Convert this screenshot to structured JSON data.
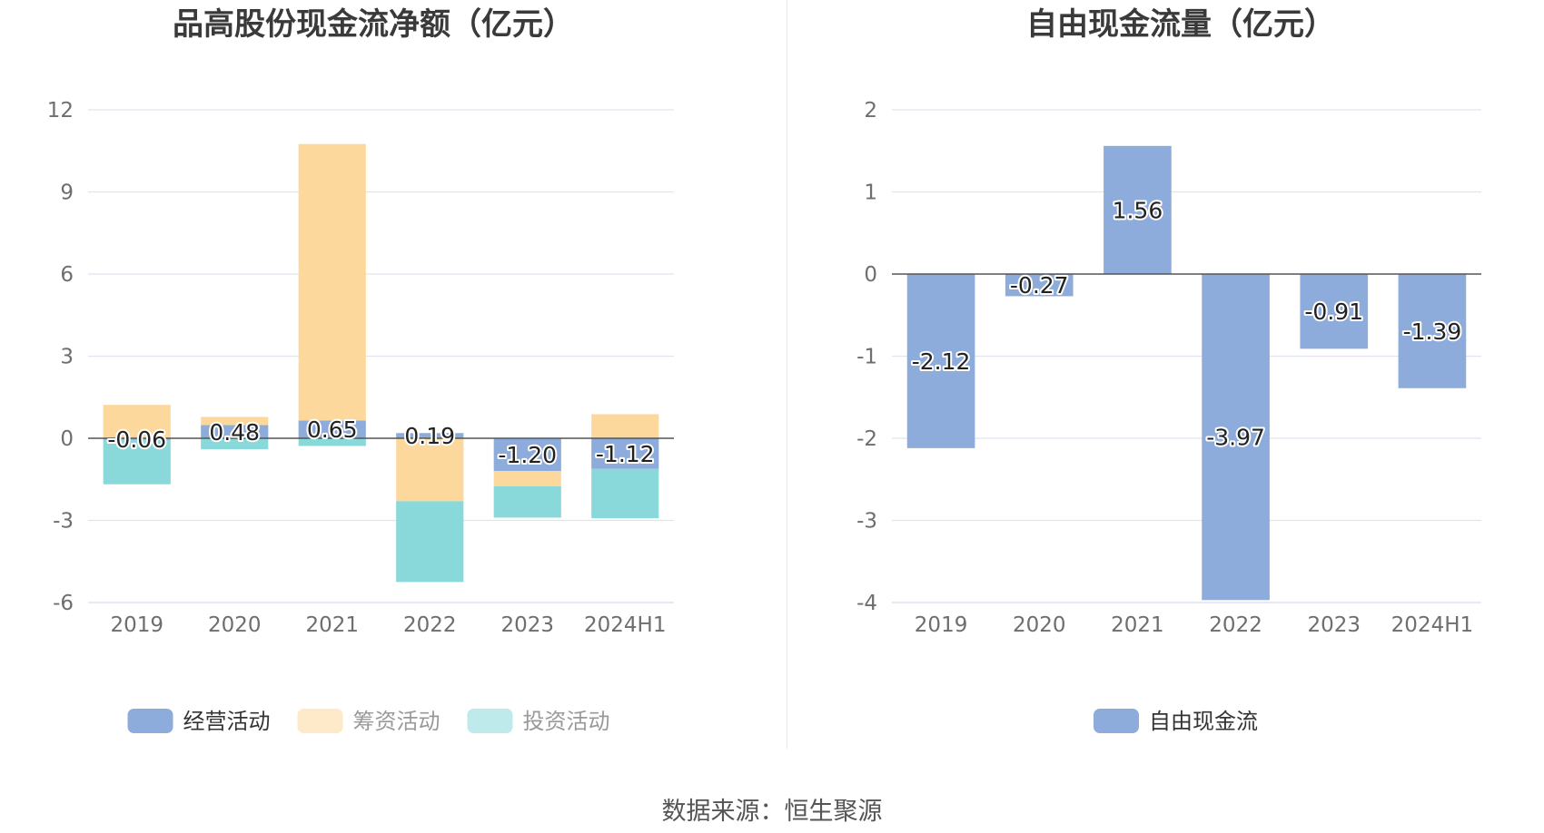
{
  "source": "数据来源：恒生聚源",
  "colors": {
    "operating": "#8eacdb",
    "financing": "#fdd89c",
    "investing": "#89d8da",
    "free_cash_flow": "#8eacdb",
    "grid": "#e1e4f0",
    "axis_text": "#6e6e6e",
    "title": "#3a3a3a",
    "zero_line": "#555555",
    "legend_text": "#333333"
  },
  "chart_data": [
    {
      "type": "bar",
      "stacked": true,
      "title": "品高股份现金流净额（亿元）",
      "categories": [
        "2019",
        "2020",
        "2021",
        "2022",
        "2023",
        "2024H1"
      ],
      "ylim": [
        -6,
        12
      ],
      "yticks": [
        "12",
        "9",
        "6",
        "3",
        "0",
        "-3",
        "-6"
      ],
      "grid": true,
      "legend_position": "bottom",
      "series": [
        {
          "name": "经营活动",
          "key": "operating",
          "values": [
            -0.06,
            0.48,
            0.65,
            0.19,
            -1.2,
            -1.12
          ]
        },
        {
          "name": "筹资活动",
          "key": "financing",
          "values": [
            1.22,
            0.3,
            10.1,
            -2.3,
            -0.55,
            0.88
          ]
        },
        {
          "name": "投资活动",
          "key": "investing",
          "values": [
            -1.62,
            -0.4,
            -0.28,
            -2.95,
            -1.15,
            -1.8
          ]
        }
      ],
      "data_labels": [
        "-0.06",
        "0.48",
        "0.65",
        "0.19",
        "-1.20",
        "-1.12"
      ]
    },
    {
      "type": "bar",
      "title": "自由现金流量（亿元）",
      "categories": [
        "2019",
        "2020",
        "2021",
        "2022",
        "2023",
        "2024H1"
      ],
      "ylim": [
        -4,
        2
      ],
      "yticks": [
        "2",
        "1",
        "0",
        "-1",
        "-2",
        "-3",
        "-4"
      ],
      "grid": true,
      "legend_position": "bottom",
      "series": [
        {
          "name": "自由现金流",
          "key": "free_cash_flow",
          "values": [
            -2.12,
            -0.27,
            1.56,
            -3.97,
            -0.91,
            -1.39
          ]
        }
      ],
      "data_labels": [
        "-2.12",
        "-0.27",
        "1.56",
        "-3.97",
        "-0.91",
        "-1.39"
      ]
    }
  ]
}
